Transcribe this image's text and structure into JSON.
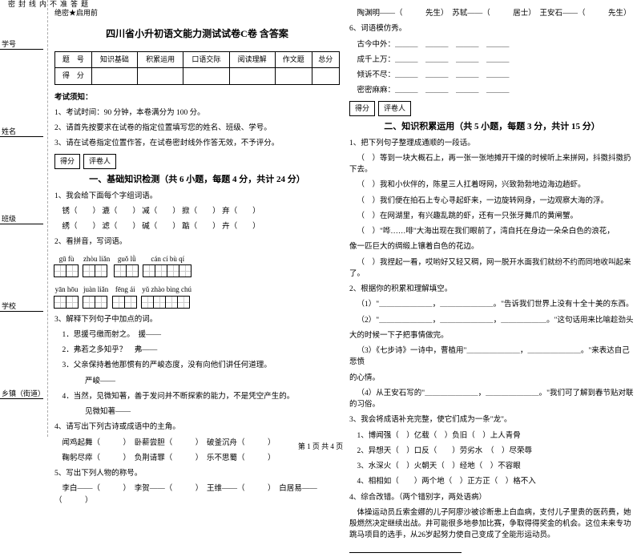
{
  "binding": {
    "side_labels": [
      "学号",
      "姓名",
      "班级",
      "学校",
      "乡镇（街道）"
    ],
    "cut_marks": [
      "题",
      "答",
      "准",
      "不",
      "内",
      "线",
      "封",
      "密"
    ]
  },
  "secret": "绝密★启用前",
  "title": "四川省小升初语文能力测试试卷C卷 含答案",
  "score_table": {
    "headers": [
      "题　号",
      "知识基础",
      "积累运用",
      "口语交际",
      "阅读理解",
      "作文题",
      "总分"
    ],
    "row_label": "得　分"
  },
  "notice_head": "考试须知：",
  "notices": [
    "1、考试时间：90 分钟，本卷满分为 100 分。",
    "2、请首先按要求在试卷的指定位置填写您的姓名、班级、学号。",
    "3、请在试卷指定位置作答，在试卷密封线外作答无效，不予评分。"
  ],
  "scorer": {
    "a": "得分",
    "b": "评卷人"
  },
  "sec1_title": "一、基础知识检测（共 6 小题，每题 4 分，共计 24 分）",
  "q1": {
    "stem": "1、我会给下面每个字组词语。",
    "rows": [
      [
        "锈（　　）",
        "漉（　　）",
        "减（　　）",
        "掀（　　）",
        "弃（　　）"
      ],
      [
        "绣（　　）",
        "滤（　　）",
        "碱（　　）",
        "踮（　　）",
        "卉（　　）"
      ]
    ]
  },
  "q2": {
    "stem": "2、看拼音，写词语。",
    "pinyin_row1": [
      "gū  fù",
      "zhòu liǎn",
      "guǒ  lǜ",
      "cán  cí   bù  qí"
    ],
    "cells_row1": [
      2,
      2,
      2,
      4
    ],
    "pinyin_row2": [
      "yān  hōu",
      "juàn liǎn",
      "fēng ái",
      "yǔ zhào bìng chú"
    ],
    "cells_row2": [
      2,
      2,
      2,
      4
    ]
  },
  "q3": {
    "stem": "3、解释下列句子中加点的词。",
    "items": [
      "1．思援弓缴而射之。　援——",
      "2．弗若之多知乎？　弗——",
      "3．父亲保持着他那惯有的严峻态度，没有向他们讲任何道理。",
      "　　严峻——",
      "4．当然，见微知著，善于发问并不断探索的能力，不是凭空产生的。",
      "　　见微知著——"
    ]
  },
  "q4": {
    "stem": "4、请写出下列古诗或成语中的主角。",
    "items": [
      "闻鸡起舞（　　　）　卧薪尝胆（　　　）　破釜沉舟（　　　）",
      "鞠躬尽瘁（　　　）　负荆请罪（　　　）　乐不思蜀（　　　）"
    ]
  },
  "q5": {
    "stem": "5、写出下列人物的称号。",
    "items": [
      "李白——（　　　）　李贺——（　　　）　王维——（　　　）　白居易——（　　　）"
    ]
  },
  "q5b": "陶渊明——（　　　先生）　苏轼——（　　　居士）　王安石——（　　　先生）",
  "q6": {
    "stem": "6、词语模仿秀。",
    "items": [
      "古今中外：＿＿＿　＿＿＿　＿＿＿　＿＿＿",
      "成千上万：＿＿＿　＿＿＿　＿＿＿　＿＿＿",
      "倾诉不尽：＿＿＿　＿＿＿　＿＿＿　＿＿＿",
      "密密麻麻：＿＿＿　＿＿＿　＿＿＿　＿＿＿"
    ]
  },
  "sec2_title": "二、知识积累运用（共 5 小题，每题 3 分，共计 15 分）",
  "q2_1": {
    "stem": "1、把下列句子整理成通顺的一段话。",
    "items": [
      "（　）等到一块大概石上，再一张一张地摊开干燥的时候听上来拼网，抖擞抖擞扔下去。",
      "（　）我和小伙伴的，陈星三人扛着呀网，兴致勃勃地边海边趟虾。",
      "（　）我们便在拍石上专心寻起虾来，一边旋转网身，一边观察大海的浮。",
      "（　）在网湖里，有兴趣乱跳的虾，还有一只张牙舞爪的黄闸蟹。",
      "（　）\"哗……啡\"大海出现在我们眼前了，湾自托在身边一朵朵白色的浪花，",
      "像一匹巨大的绸缎上镶着白色的花边。",
      "（　）我捏起一看，哎哟好又轻又稠，网一脱开水面我们就纷不约而同地收叫起来了。"
    ]
  },
  "q2_2": {
    "stem": "2、根据你的积累和理解填空。",
    "items": [
      "（1）\"＿＿＿＿＿＿＿，＿＿＿＿＿＿＿。\"告诉我们世界上没有十全十美的东西。",
      "（2）\"＿＿＿＿＿＿＿，＿＿＿＿＿＿＿，＿＿＿＿＿＿。\"这句话用来比喻趁劲头",
      "大的时候一下子把事情做完。",
      "（3）《七步诗》一诗中，曹植用\"＿＿＿＿＿＿＿，＿＿＿＿＿＿＿。\"来表达自己悲愤",
      "的心情。",
      "（4）从王安石写的\"＿＿＿＿＿＿＿，＿＿＿＿＿＿＿。\"我们可了解到春节贴对联的习俗。"
    ]
  },
  "q2_3": {
    "stem": "3、我会将成语补充完整，使它们成为一条\"龙\"。",
    "items": [
      "1、博闻强（　）亿载（　）负旧（　）上人青骨",
      "2、异想天（　）口反（　　）劳劣水　（　）尽荣辱",
      "3、水深火（　）火朝天（　）经地（　）不容眼",
      "4、相相如（　　）两个地（　）正方正（　）格不入"
    ]
  },
  "q2_4": {
    "stem": "4、综合改错。（两个错别字，两处语病）",
    "text": "体操运动员丘索金娜的儿子阿廖沙被诊断患上白血病，支付儿子里贵的医药费，她殷燃然决定继续出战。井可能很多地参加比赛，争取得得奖金的机会。这位未来专功跳马项目的选手，从26岁起努力使自己变成了全能形运动员。"
  },
  "footer": "第 1 页 共 4 页"
}
